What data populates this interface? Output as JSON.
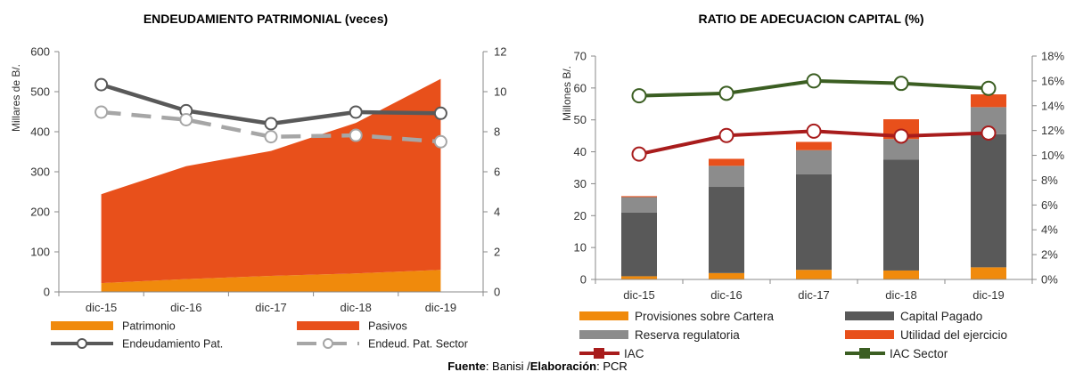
{
  "chart_data": [
    {
      "type": "area",
      "title": "ENDEUDAMIENTO PATRIMONIAL (veces)",
      "ylabel": "Millares de B/.",
      "ylim": [
        0,
        600
      ],
      "yticks": [
        0,
        100,
        200,
        300,
        400,
        500,
        600
      ],
      "y2lim": [
        0,
        12
      ],
      "y2ticks": [
        0,
        2,
        4,
        6,
        8,
        10,
        12
      ],
      "categories": [
        "dic-15",
        "dic-16",
        "dic-17",
        "dic-18",
        "dic-19"
      ],
      "grid": false,
      "legend_position": "bottom",
      "series": [
        {
          "name": "Patrimonio",
          "type": "area",
          "axis": "left",
          "color": "#F08A0C",
          "values": [
            22,
            32,
            40,
            46,
            55
          ]
        },
        {
          "name": "Pasivos",
          "type": "area",
          "axis": "left",
          "color": "#E8501B",
          "values": [
            222,
            282,
            312,
            376,
            477
          ]
        },
        {
          "name": "Endeudamiento Pat.",
          "type": "line",
          "axis": "right",
          "color": "#595959",
          "values": [
            10.35,
            9.05,
            8.4,
            8.98,
            8.92
          ]
        },
        {
          "name": "Endeud. Pat. Sector",
          "type": "line",
          "axis": "right",
          "dashed": true,
          "color": "#A6A6A6",
          "values": [
            8.98,
            8.6,
            7.75,
            7.82,
            7.5
          ]
        }
      ]
    },
    {
      "type": "bar",
      "stacked": true,
      "title": "RATIO DE ADECUACION CAPITAL (%)",
      "ylabel": "Millones B/.",
      "ylim": [
        0,
        70
      ],
      "yticks": [
        0,
        10,
        20,
        30,
        40,
        50,
        60,
        70
      ],
      "y2lim": [
        0,
        18
      ],
      "y2ticks": [
        "0%",
        "2%",
        "4%",
        "6%",
        "8%",
        "10%",
        "12%",
        "14%",
        "16%",
        "18%"
      ],
      "categories": [
        "dic-15",
        "dic-16",
        "dic-17",
        "dic-18",
        "dic-19"
      ],
      "grid": false,
      "legend_position": "bottom",
      "series": [
        {
          "name": "Provisiones sobre Cartera",
          "type": "bar",
          "axis": "left",
          "color": "#F08A0C",
          "values": [
            1,
            2,
            3,
            2.8,
            3.8
          ]
        },
        {
          "name": "Capital Pagado",
          "type": "bar",
          "axis": "left",
          "color": "#595959",
          "values": [
            20,
            27,
            30,
            34.8,
            41.7
          ]
        },
        {
          "name": "Reserva regulatoria",
          "type": "bar",
          "axis": "left",
          "color": "#8C8C8C",
          "values": [
            4.8,
            6.6,
            7.5,
            6.4,
            8.5
          ]
        },
        {
          "name": "Utilidad del ejercicio",
          "type": "bar",
          "axis": "left",
          "color": "#E8501B",
          "values": [
            0.3,
            2.2,
            2.6,
            6.2,
            4
          ]
        },
        {
          "name": "IAC",
          "type": "line",
          "axis": "right",
          "color": "#A81C1C",
          "values": [
            10.1,
            11.6,
            11.95,
            11.55,
            11.8
          ]
        },
        {
          "name": "IAC Sector",
          "type": "line",
          "axis": "right",
          "color": "#3B5E22",
          "values": [
            14.8,
            15.0,
            16.0,
            15.8,
            15.4
          ]
        }
      ]
    }
  ],
  "source": {
    "label1": "Fuente",
    "text1": ": Banisi /",
    "label2": "Elaboración",
    "text2": ": PCR"
  }
}
